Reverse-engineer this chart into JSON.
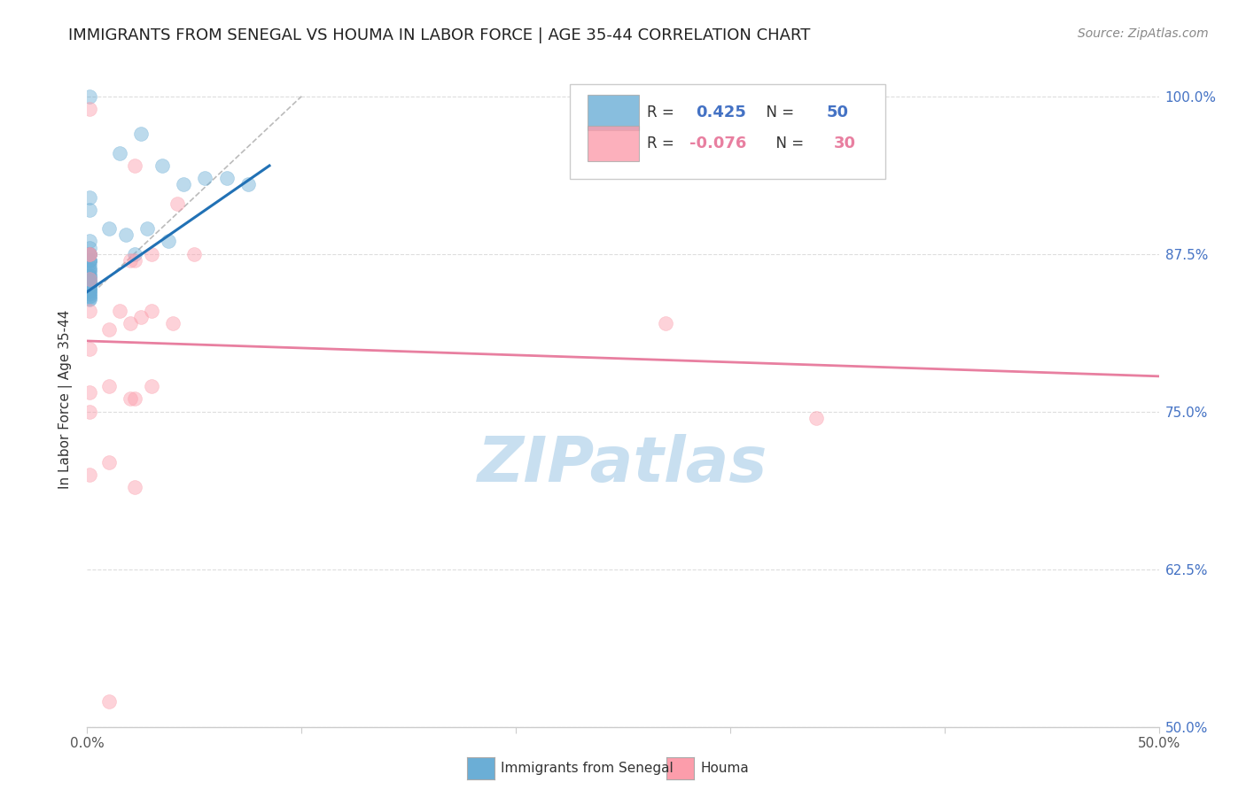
{
  "title": "IMMIGRANTS FROM SENEGAL VS HOUMA IN LABOR FORCE | AGE 35-44 CORRELATION CHART",
  "source": "Source: ZipAtlas.com",
  "ylabel": "In Labor Force | Age 35-44",
  "legend_blue_R": "0.425",
  "legend_blue_N": "50",
  "legend_pink_R": "-0.076",
  "legend_pink_N": "30",
  "legend_label_blue": "Immigrants from Senegal",
  "legend_label_pink": "Houma",
  "blue_color": "#6baed6",
  "pink_color": "#fc9dab",
  "blue_line_color": "#2171b5",
  "pink_line_color": "#e87fa0",
  "dashed_line_color": "#bbbbbb",
  "watermark_color": "#c8dff0",
  "blue_scatter_x": [
    0.001,
    0.025,
    0.015,
    0.035,
    0.045,
    0.055,
    0.065,
    0.075,
    0.001,
    0.001,
    0.01,
    0.018,
    0.028,
    0.038,
    0.001,
    0.001,
    0.001,
    0.022,
    0.001,
    0.001,
    0.001,
    0.001,
    0.001,
    0.001,
    0.001,
    0.001,
    0.001,
    0.001,
    0.001,
    0.001,
    0.001,
    0.001,
    0.001,
    0.001,
    0.001,
    0.001,
    0.001,
    0.001,
    0.001,
    0.001,
    0.001,
    0.001,
    0.001,
    0.001,
    0.001,
    0.001,
    0.001,
    0.001,
    0.001,
    0.001
  ],
  "blue_scatter_y": [
    1.0,
    0.97,
    0.955,
    0.945,
    0.93,
    0.935,
    0.935,
    0.93,
    0.92,
    0.91,
    0.895,
    0.89,
    0.895,
    0.885,
    0.885,
    0.88,
    0.875,
    0.875,
    0.875,
    0.875,
    0.87,
    0.87,
    0.87,
    0.875,
    0.868,
    0.865,
    0.863,
    0.862,
    0.86,
    0.858,
    0.857,
    0.856,
    0.855,
    0.854,
    0.853,
    0.852,
    0.851,
    0.85,
    0.85,
    0.849,
    0.848,
    0.847,
    0.846,
    0.845,
    0.844,
    0.843,
    0.842,
    0.841,
    0.84,
    0.839
  ],
  "pink_scatter_x": [
    0.001,
    0.022,
    0.042,
    0.001,
    0.02,
    0.05,
    0.001,
    0.03,
    0.022,
    0.001,
    0.001,
    0.015,
    0.03,
    0.02,
    0.01,
    0.001,
    0.04,
    0.025,
    0.01,
    0.03,
    0.001,
    0.022,
    0.01,
    0.001,
    0.022,
    0.27,
    0.001,
    0.34,
    0.01,
    0.02
  ],
  "pink_scatter_y": [
    0.99,
    0.945,
    0.915,
    0.875,
    0.87,
    0.875,
    0.875,
    0.875,
    0.87,
    0.855,
    0.83,
    0.83,
    0.83,
    0.82,
    0.815,
    0.8,
    0.82,
    0.825,
    0.77,
    0.77,
    0.765,
    0.76,
    0.71,
    0.7,
    0.69,
    0.82,
    0.75,
    0.745,
    0.52,
    0.76
  ],
  "blue_trendline_x": [
    0.0,
    0.085
  ],
  "blue_trendline_y": [
    0.845,
    0.945
  ],
  "pink_trendline_x": [
    0.0,
    0.5
  ],
  "pink_trendline_y": [
    0.806,
    0.778
  ],
  "dashed_line_x": [
    0.0,
    0.1
  ],
  "dashed_line_y": [
    0.84,
    1.0
  ],
  "xlim": [
    0.0,
    0.5
  ],
  "ylim": [
    0.5,
    1.02
  ],
  "yticks": [
    0.5,
    0.625,
    0.75,
    0.875,
    1.0
  ],
  "ytick_labels": [
    "50.0%",
    "62.5%",
    "75.0%",
    "87.5%",
    "100.0%"
  ],
  "xticks": [
    0.0,
    0.1,
    0.2,
    0.3,
    0.4,
    0.5
  ],
  "xtick_labels": [
    "0.0%",
    "",
    "",
    "",
    "",
    "50.0%"
  ],
  "grid_color": "#dddddd",
  "bg_color": "#ffffff",
  "title_fontsize": 13,
  "axis_label_fontsize": 11,
  "tick_fontsize": 11,
  "scatter_size": 130,
  "scatter_alpha": 0.45,
  "source_text": "Source: ZipAtlas.com"
}
